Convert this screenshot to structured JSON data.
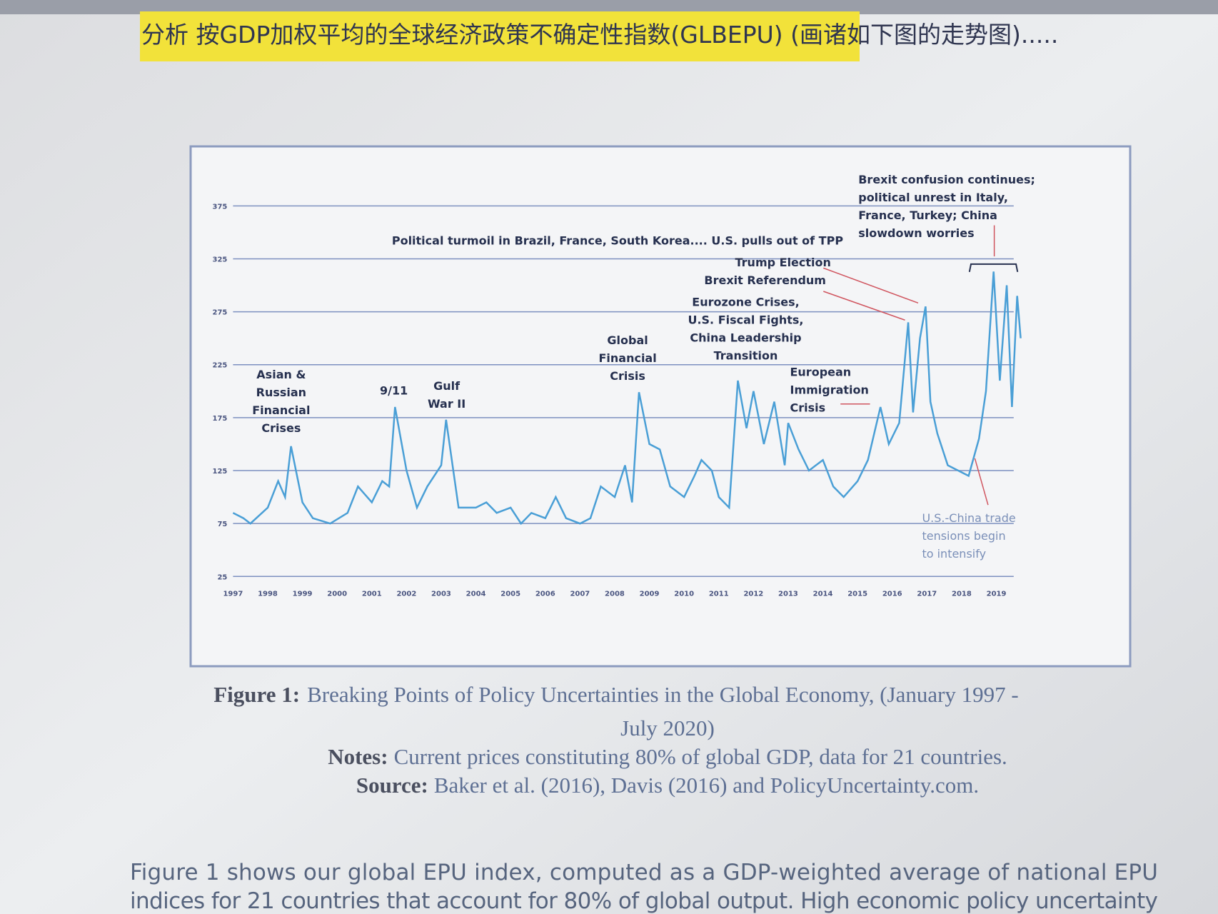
{
  "header": {
    "highlighted": "分析 按GDP加权平均的全球经济政策不确定性指数(GLBEPU)",
    "rest": " (画诸如下图的走势图)....."
  },
  "chart_data": {
    "type": "line",
    "xlim": [
      1997,
      2019.5
    ],
    "ylim": [
      25,
      375
    ],
    "xticks": [
      1997,
      1998,
      1999,
      2000,
      2001,
      2002,
      2003,
      2004,
      2005,
      2006,
      2007,
      2008,
      2009,
      2010,
      2011,
      2012,
      2013,
      2014,
      2015,
      2016,
      2017,
      2018,
      2019
    ],
    "yticks": [
      25,
      75,
      125,
      175,
      225,
      275,
      325,
      375
    ],
    "grid": true,
    "series": [
      {
        "color": "#4a9fd6",
        "x": [
          1997.0,
          1997.3,
          1997.5,
          1998.0,
          1998.3,
          1998.5,
          1998.67,
          1999.0,
          1999.3,
          1999.8,
          2000.3,
          2000.6,
          2001.0,
          2001.3,
          2001.5,
          2001.67,
          2002.0,
          2002.3,
          2002.6,
          2003.0,
          2003.14,
          2003.5,
          2004.0,
          2004.3,
          2004.6,
          2005.0,
          2005.3,
          2005.6,
          2006.0,
          2006.3,
          2006.6,
          2007.0,
          2007.3,
          2007.6,
          2008.0,
          2008.3,
          2008.5,
          2008.7,
          2009.0,
          2009.3,
          2009.6,
          2010.0,
          2010.3,
          2010.5,
          2010.8,
          2011.0,
          2011.3,
          2011.55,
          2011.8,
          2012.0,
          2012.3,
          2012.6,
          2012.9,
          2013.0,
          2013.3,
          2013.6,
          2014.0,
          2014.3,
          2014.6,
          2015.0,
          2015.3,
          2015.66,
          2015.9,
          2016.2,
          2016.46,
          2016.6,
          2016.8,
          2016.96,
          2017.1,
          2017.3,
          2017.6,
          2017.9,
          2018.2,
          2018.5,
          2018.7,
          2018.92,
          2019.1,
          2019.3,
          2019.45,
          2019.6,
          2019.7
        ],
        "values": [
          85,
          80,
          75,
          90,
          115,
          100,
          148,
          95,
          80,
          75,
          85,
          110,
          95,
          115,
          110,
          185,
          125,
          90,
          110,
          130,
          173,
          90,
          90,
          95,
          85,
          90,
          75,
          85,
          80,
          100,
          80,
          75,
          80,
          110,
          100,
          130,
          95,
          199,
          150,
          145,
          110,
          100,
          120,
          135,
          125,
          100,
          90,
          210,
          165,
          200,
          150,
          190,
          130,
          170,
          145,
          125,
          135,
          110,
          100,
          115,
          135,
          185,
          150,
          170,
          265,
          180,
          250,
          280,
          190,
          160,
          130,
          125,
          120,
          155,
          200,
          313,
          210,
          300,
          185,
          290,
          250
        ]
      }
    ],
    "annotations": [
      {
        "lines": [
          "Asian &",
          "Russian",
          "Financial",
          "Crises"
        ]
      },
      {
        "lines": [
          "9/11"
        ]
      },
      {
        "lines": [
          "Gulf",
          "War II"
        ]
      },
      {
        "lines": [
          "Global",
          "Financial",
          "Crisis"
        ]
      },
      {
        "lines": [
          "Eurozone Crises,",
          "U.S. Fiscal Fights,",
          "China Leadership",
          "Transition"
        ]
      },
      {
        "lines": [
          "European",
          "Immigration",
          "Crisis"
        ]
      },
      {
        "lines": [
          "Brexit Referendum"
        ]
      },
      {
        "lines": [
          "Trump Election"
        ]
      },
      {
        "lines": [
          "Political turmoil in Brazil, France, South Korea.... U.S. pulls out of TPP"
        ]
      },
      {
        "lines": [
          "Brexit confusion continues;",
          "political unrest in Italy,",
          "France, Turkey; China",
          "slowdown worries"
        ]
      },
      {
        "lines": [
          "U.S.-China trade",
          "tensions begin",
          "to intensify"
        ]
      }
    ]
  },
  "caption": {
    "label": "Figure 1:",
    "title_lines": [
      "Breaking Points of Policy Uncertainties in the Global Economy, (January 1997 -",
      "July 2020)"
    ],
    "notes_label": "Notes:",
    "notes": "Current prices constituting 80% of global GDP, data for 21 countries.",
    "source_label": "Source:",
    "source": "Baker et al. (2016), Davis (2016) and PolicyUncertainty.com."
  },
  "body": {
    "lines": [
      "Figure 1 shows our global EPU index, computed as a GDP-weighted average of national EPU",
      "indices for 21 countries that account for 80% of global output. High economic policy uncertainty"
    ]
  }
}
